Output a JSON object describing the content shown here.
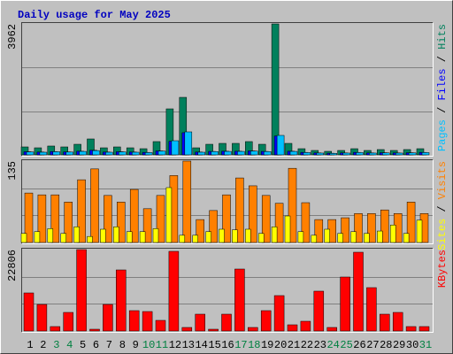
{
  "chart_data": [
    {
      "type": "bar",
      "title": "Daily usage for May 2025",
      "ylim": [
        0,
        3962
      ],
      "yticks": [
        3962
      ],
      "legend_separator": " / ",
      "series": [
        {
          "name": "Hits",
          "color": "#00805c",
          "values": [
            241,
            214,
            268,
            241,
            321,
            482,
            214,
            241,
            214,
            187,
            402,
            1392,
            1740,
            214,
            321,
            348,
            348,
            402,
            321,
            3962,
            348,
            187,
            134,
            107,
            134,
            187,
            134,
            161,
            134,
            161,
            187
          ]
        },
        {
          "name": "Files",
          "color": "#0000ff",
          "values": [
            95,
            85,
            100,
            90,
            110,
            140,
            85,
            95,
            85,
            75,
            120,
            410,
            670,
            85,
            105,
            110,
            110,
            120,
            105,
            570,
            110,
            75,
            60,
            50,
            60,
            75,
            60,
            65,
            60,
            65,
            75
          ]
        },
        {
          "name": "Pages",
          "color": "#00c0ff",
          "values": [
            90,
            80,
            95,
            85,
            105,
            130,
            80,
            90,
            80,
            70,
            115,
            428,
            696,
            80,
            100,
            105,
            105,
            115,
            100,
            589,
            105,
            70,
            55,
            45,
            55,
            70,
            55,
            60,
            55,
            60,
            70
          ]
        }
      ]
    },
    {
      "type": "bar",
      "ylim": [
        0,
        135
      ],
      "yticks": [
        135
      ],
      "legend_separator": " / ",
      "series": [
        {
          "name": "Visits",
          "color": "#ff8000",
          "values": [
            82,
            79,
            79,
            67,
            104,
            122,
            78,
            67,
            88,
            56,
            78,
            111,
            135,
            38,
            53,
            79,
            107,
            94,
            78,
            65,
            123,
            66,
            38,
            38,
            41,
            48,
            48,
            54,
            48,
            67,
            48
          ]
        },
        {
          "name": "Sites",
          "color": "#ffff00",
          "values": [
            15,
            18,
            23,
            15,
            26,
            10,
            22,
            26,
            18,
            18,
            23,
            91,
            12,
            12,
            18,
            22,
            21,
            22,
            15,
            26,
            44,
            18,
            12,
            22,
            15,
            18,
            15,
            19,
            29,
            15,
            37
          ]
        }
      ]
    },
    {
      "type": "bar",
      "ylim": [
        0,
        22806
      ],
      "yticks": [
        22806
      ],
      "categories": [
        "1",
        "2",
        "3",
        "4",
        "5",
        "6",
        "7",
        "8",
        "9",
        "10",
        "11",
        "12",
        "13",
        "14",
        "15",
        "16",
        "17",
        "18",
        "19",
        "20",
        "21",
        "22",
        "23",
        "24",
        "25",
        "26",
        "27",
        "28",
        "29",
        "30",
        "31"
      ],
      "category_colors": [
        "#000000",
        "#000000",
        "#008040",
        "#008040",
        "#000000",
        "#000000",
        "#000000",
        "#000000",
        "#000000",
        "#008040",
        "#008040",
        "#000000",
        "#000000",
        "#000000",
        "#000000",
        "#000000",
        "#008040",
        "#008040",
        "#000000",
        "#000000",
        "#000000",
        "#000000",
        "#000000",
        "#008040",
        "#008040",
        "#000000",
        "#000000",
        "#000000",
        "#000000",
        "#000000",
        "#008040"
      ],
      "series": [
        {
          "name": "KBytes",
          "color": "#ff0000",
          "values": [
            10660,
            7437,
            1240,
            5206,
            22806,
            496,
            7437,
            17105,
            5702,
            5454,
            2975,
            22311,
            992,
            4710,
            496,
            4710,
            17353,
            992,
            5702,
            9916,
            1735,
            2727,
            11156,
            992,
            15122,
            22063,
            12147,
            4710,
            5206,
            1240,
            1240
          ]
        }
      ]
    }
  ]
}
